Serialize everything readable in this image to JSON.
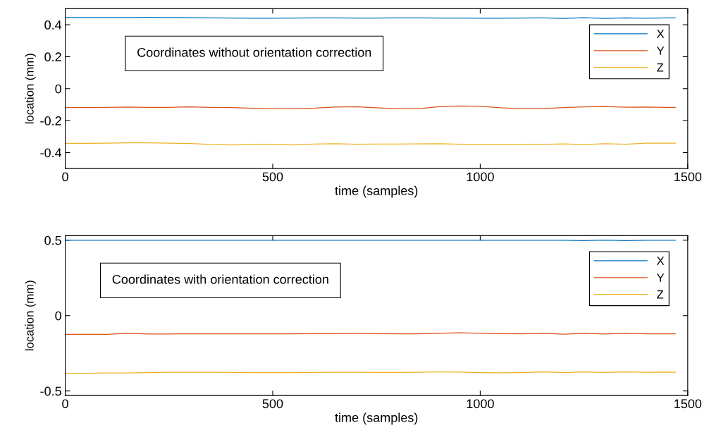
{
  "chart_data": [
    {
      "type": "line",
      "xlabel": "time (samples)",
      "ylabel": "location (mm)",
      "annotations": [
        "Coordinates without orientation correction"
      ],
      "x": [
        0,
        50,
        100,
        150,
        200,
        250,
        300,
        350,
        400,
        450,
        500,
        550,
        600,
        650,
        700,
        750,
        800,
        850,
        900,
        950,
        1000,
        1050,
        1100,
        1150,
        1200,
        1250,
        1300,
        1350,
        1400,
        1450,
        1470
      ],
      "series": [
        {
          "name": "X",
          "color": "#0072bd",
          "values": [
            0.445,
            0.445,
            0.445,
            0.445,
            0.446,
            0.445,
            0.444,
            0.443,
            0.442,
            0.441,
            0.441,
            0.442,
            0.443,
            0.443,
            0.442,
            0.442,
            0.443,
            0.443,
            0.442,
            0.442,
            0.441,
            0.441,
            0.442,
            0.443,
            0.44,
            0.444,
            0.44,
            0.443,
            0.441,
            0.443,
            0.443
          ]
        },
        {
          "name": "Y",
          "color": "#d95319",
          "values": [
            -0.118,
            -0.118,
            -0.117,
            -0.115,
            -0.117,
            -0.117,
            -0.114,
            -0.117,
            -0.118,
            -0.123,
            -0.126,
            -0.126,
            -0.122,
            -0.115,
            -0.113,
            -0.12,
            -0.126,
            -0.126,
            -0.113,
            -0.108,
            -0.111,
            -0.12,
            -0.126,
            -0.125,
            -0.118,
            -0.114,
            -0.112,
            -0.116,
            -0.115,
            -0.117,
            -0.117
          ]
        },
        {
          "name": "Z",
          "color": "#edb120",
          "values": [
            -0.342,
            -0.342,
            -0.341,
            -0.339,
            -0.339,
            -0.341,
            -0.343,
            -0.349,
            -0.352,
            -0.349,
            -0.349,
            -0.352,
            -0.347,
            -0.344,
            -0.348,
            -0.347,
            -0.347,
            -0.346,
            -0.344,
            -0.348,
            -0.351,
            -0.351,
            -0.349,
            -0.349,
            -0.346,
            -0.35,
            -0.344,
            -0.348,
            -0.341,
            -0.341,
            -0.341
          ]
        }
      ],
      "xlim": [
        0,
        1500
      ],
      "xticks": [
        0,
        500,
        1000,
        1500
      ],
      "ylim": [
        -0.5,
        0.5
      ],
      "yticks": [
        -0.4,
        -0.2,
        0,
        0.2,
        0.4
      ],
      "legend": "top right",
      "grid": false
    },
    {
      "type": "line",
      "xlabel": "time (samples)",
      "ylabel": "location (mm)",
      "annotations": [
        "Coordinates with orientation correction"
      ],
      "x": [
        0,
        50,
        100,
        150,
        200,
        250,
        300,
        350,
        400,
        450,
        500,
        550,
        600,
        650,
        700,
        750,
        800,
        850,
        900,
        950,
        1000,
        1050,
        1100,
        1150,
        1200,
        1250,
        1300,
        1350,
        1400,
        1450,
        1470
      ],
      "series": [
        {
          "name": "X",
          "color": "#0072bd",
          "values": [
            0.5,
            0.5,
            0.5,
            0.5,
            0.5,
            0.5,
            0.5,
            0.5,
            0.5,
            0.5,
            0.499,
            0.499,
            0.5,
            0.5,
            0.5,
            0.5,
            0.5,
            0.5,
            0.5,
            0.5,
            0.5,
            0.5,
            0.499,
            0.499,
            0.5,
            0.497,
            0.501,
            0.497,
            0.5,
            0.499,
            0.499
          ]
        },
        {
          "name": "Y",
          "color": "#d95319",
          "values": [
            -0.125,
            -0.125,
            -0.125,
            -0.118,
            -0.122,
            -0.122,
            -0.121,
            -0.121,
            -0.121,
            -0.121,
            -0.121,
            -0.121,
            -0.12,
            -0.12,
            -0.119,
            -0.12,
            -0.121,
            -0.121,
            -0.117,
            -0.114,
            -0.118,
            -0.12,
            -0.121,
            -0.118,
            -0.123,
            -0.117,
            -0.122,
            -0.118,
            -0.121,
            -0.121,
            -0.121
          ]
        },
        {
          "name": "Z",
          "color": "#edb120",
          "values": [
            -0.383,
            -0.383,
            -0.381,
            -0.38,
            -0.378,
            -0.376,
            -0.376,
            -0.376,
            -0.377,
            -0.378,
            -0.378,
            -0.378,
            -0.377,
            -0.376,
            -0.376,
            -0.377,
            -0.377,
            -0.376,
            -0.374,
            -0.375,
            -0.378,
            -0.379,
            -0.378,
            -0.374,
            -0.378,
            -0.373,
            -0.377,
            -0.374,
            -0.376,
            -0.375,
            -0.376
          ]
        }
      ],
      "xlim": [
        0,
        1500
      ],
      "xticks": [
        0,
        500,
        1000,
        1500
      ],
      "ylim": [
        -0.53,
        0.53
      ],
      "yticks": [
        -0.5,
        0,
        0.5
      ],
      "legend": "top right",
      "grid": false
    }
  ]
}
